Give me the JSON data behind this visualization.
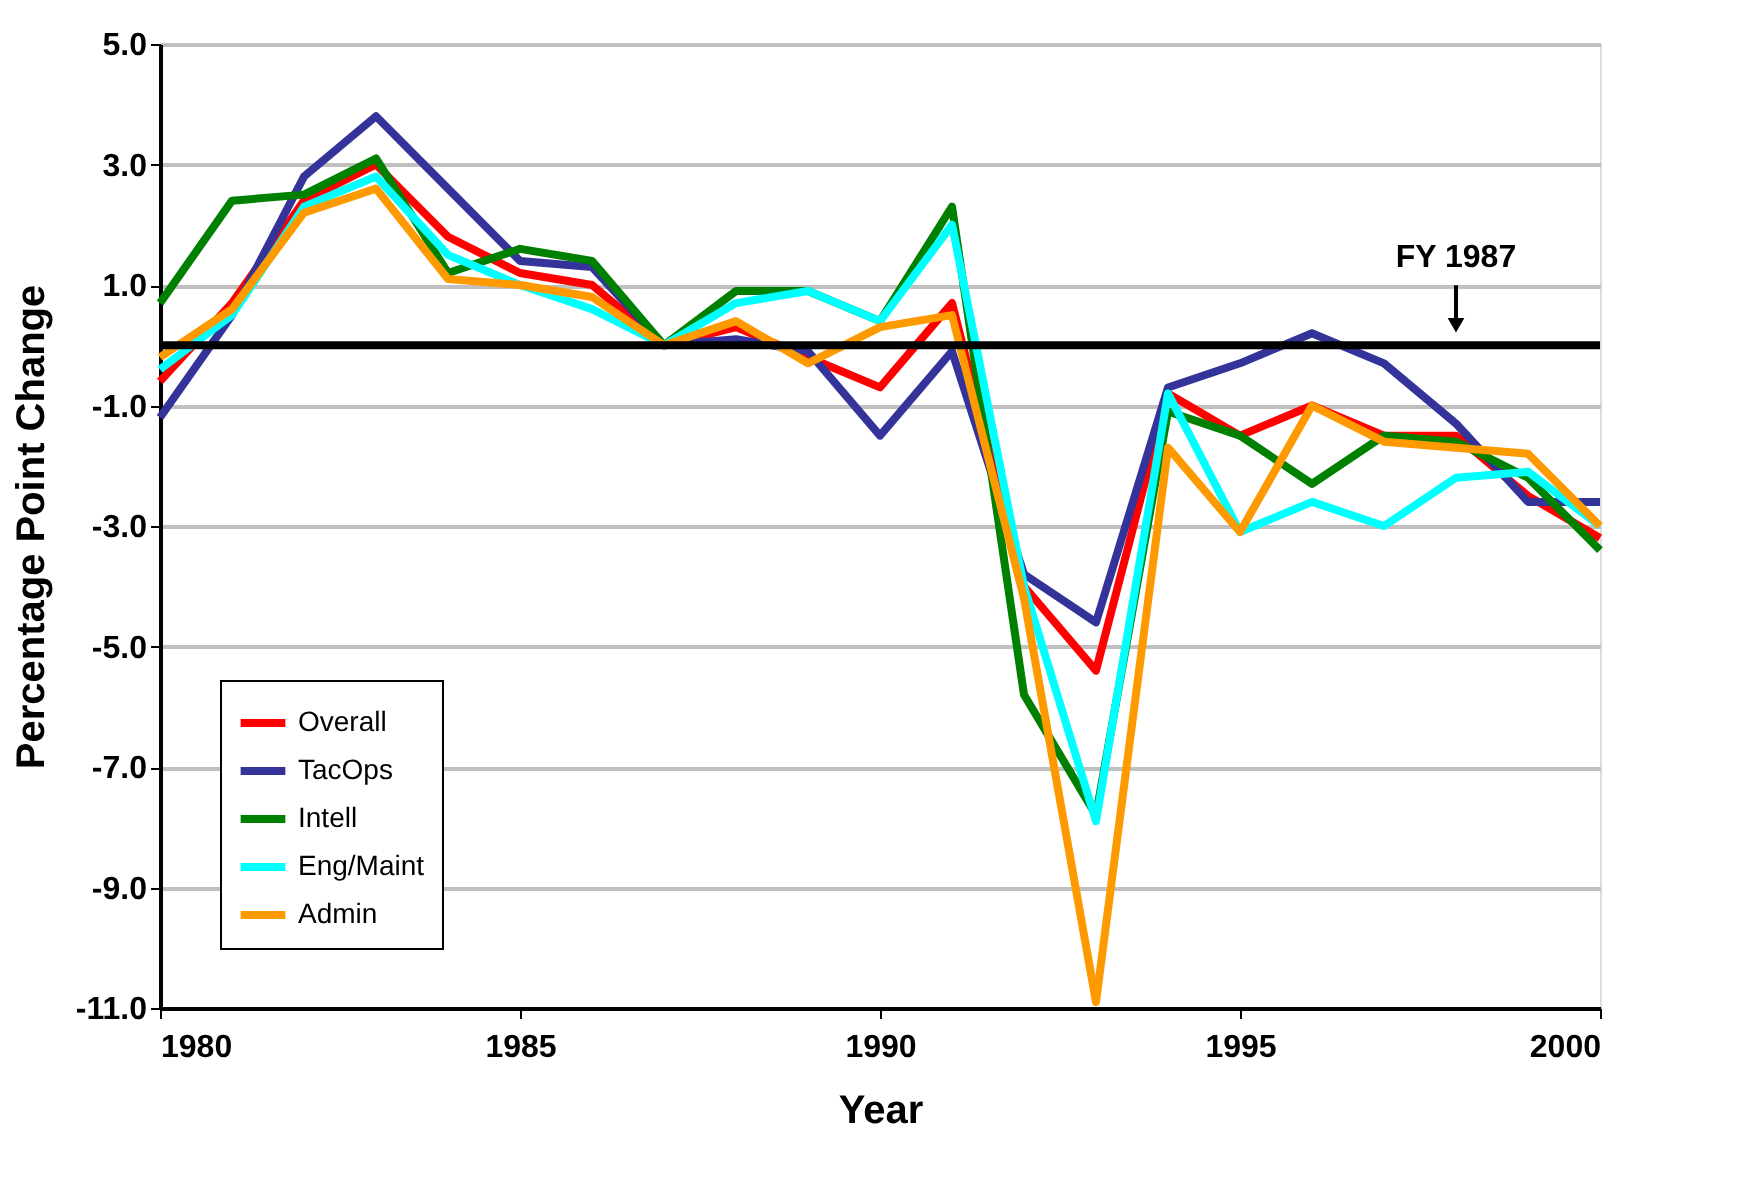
{
  "chart_data": {
    "type": "line",
    "xlabel": "Year",
    "ylabel": "Percentage Point Change",
    "x": [
      1980,
      1981,
      1982,
      1983,
      1984,
      1985,
      1986,
      1987,
      1988,
      1989,
      1990,
      1991,
      1992,
      1993,
      1994,
      1995,
      1996,
      1997,
      1998,
      1999,
      2000
    ],
    "series": [
      {
        "name": "Overall",
        "color": "#ff0000",
        "values": [
          -0.6,
          0.7,
          2.4,
          3.0,
          1.8,
          1.2,
          1.0,
          0,
          0.3,
          -0.2,
          -0.7,
          0.7,
          -4.0,
          -5.4,
          -0.8,
          -1.5,
          -1.0,
          -1.5,
          -1.5,
          -2.5,
          -3.2
        ]
      },
      {
        "name": "TacOps",
        "color": "#333399",
        "values": [
          -1.2,
          0.5,
          2.8,
          3.8,
          2.6,
          1.4,
          1.3,
          0,
          0.1,
          -0.1,
          -1.5,
          -0.1,
          -3.8,
          -4.6,
          -0.7,
          -0.3,
          0.2,
          -0.3,
          -1.3,
          -2.6,
          -2.6
        ]
      },
      {
        "name": "Intell",
        "color": "#008000",
        "values": [
          0.7,
          2.4,
          2.5,
          3.1,
          1.2,
          1.6,
          1.4,
          0,
          0.9,
          0.9,
          0.4,
          2.3,
          -5.8,
          -7.8,
          -1.1,
          -1.5,
          -2.3,
          -1.5,
          -1.6,
          -2.2,
          -3.4
        ]
      },
      {
        "name": "Eng/Maint",
        "color": "#00ffff",
        "values": [
          -0.4,
          0.5,
          2.3,
          2.8,
          1.5,
          1.0,
          0.6,
          0,
          0.7,
          0.9,
          0.4,
          2.0,
          -4.0,
          -7.9,
          -0.8,
          -3.1,
          -2.6,
          -3.0,
          -2.2,
          -2.1,
          -3.0
        ]
      },
      {
        "name": "Admin",
        "color": "#ff9900",
        "values": [
          -0.2,
          0.6,
          2.2,
          2.6,
          1.1,
          1.0,
          0.8,
          0,
          0.4,
          -0.3,
          0.3,
          0.5,
          -4.2,
          -10.9,
          -1.7,
          -3.1,
          -1.0,
          -1.6,
          -1.7,
          -1.8,
          -3.0
        ]
      }
    ],
    "xlim": [
      1980,
      2000
    ],
    "xticks": [
      1980,
      1985,
      1990,
      1995,
      2000
    ],
    "ylim": [
      -11,
      5
    ],
    "yticks": [
      {
        "value": 5,
        "label": "5.0"
      },
      {
        "value": 3,
        "label": "3.0"
      },
      {
        "value": 1,
        "label": "1.0"
      },
      {
        "value": -1,
        "label": "-1.0"
      },
      {
        "value": -3,
        "label": "-3.0"
      },
      {
        "value": -5,
        "label": "-5.0"
      },
      {
        "value": -7,
        "label": "-7.0"
      },
      {
        "value": -9,
        "label": "-9.0"
      },
      {
        "value": -11,
        "label": "-11.0"
      }
    ],
    "ref_lines": [
      {
        "axis": "y",
        "value": 0,
        "color": "#000000"
      }
    ],
    "annotations": [
      {
        "text": "FY 1987",
        "x": 1998,
        "y": 0
      }
    ],
    "grid": "y",
    "legend": "bottom left",
    "marker": "none",
    "line_style": "solid"
  }
}
